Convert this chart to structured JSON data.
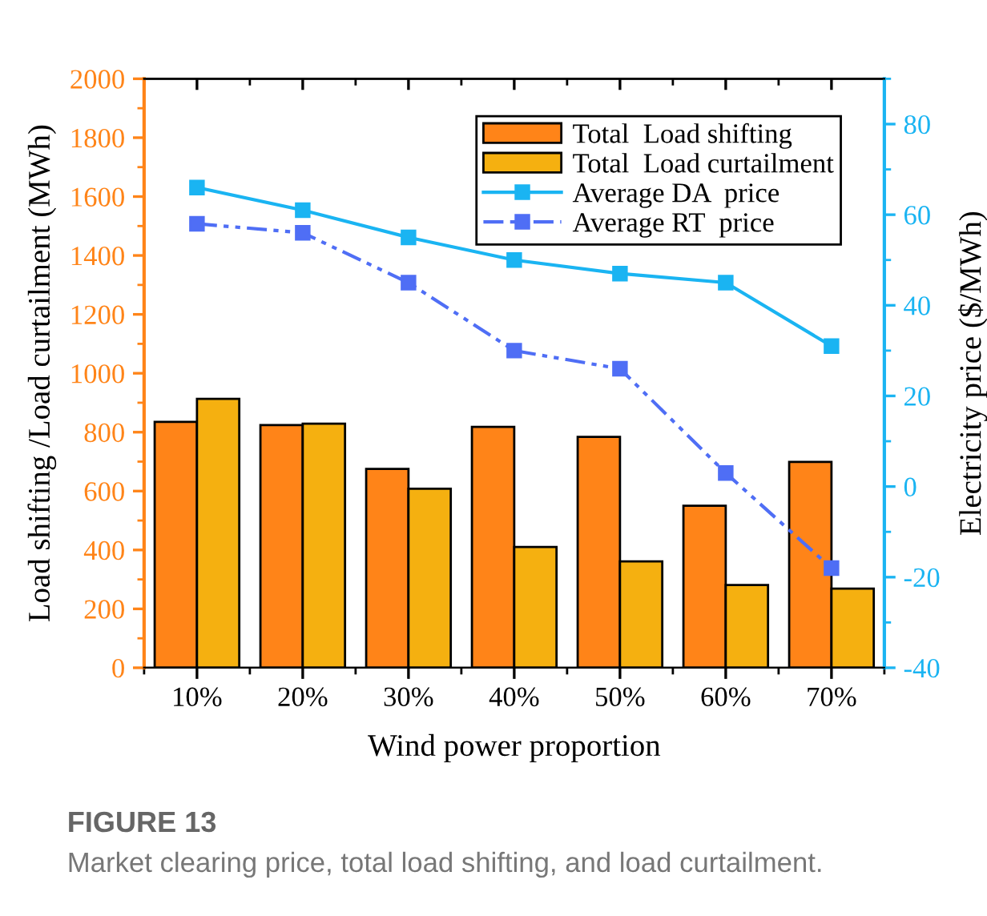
{
  "chart_data": {
    "type": "bar",
    "xlabel": "Wind power proportion",
    "ylabel": "Load shifting /Load curtailment (MWh)",
    "y2label": "Electricity price ($/MWh)",
    "categories": [
      "10%",
      "20%",
      "30%",
      "40%",
      "50%",
      "60%",
      "70%"
    ],
    "series": [
      {
        "name": "Total  Load shifting",
        "color": "#ff8418",
        "values": [
          835,
          824,
          675,
          818,
          784,
          550,
          699
        ]
      },
      {
        "name": "Total  Load curtailment",
        "color": "#f5b010",
        "values": [
          913,
          829,
          608,
          410,
          361,
          281,
          269
        ]
      },
      {
        "name": "Average DA  price",
        "type": "line",
        "axis": "y2",
        "color": "#1ab4f2",
        "line_style": "solid",
        "values": [
          66,
          61,
          55,
          50,
          47,
          45,
          31
        ]
      },
      {
        "name": "Average RT  price",
        "type": "line",
        "axis": "y2",
        "color": "#4f6ef5",
        "line_style": "dashed",
        "values": [
          58,
          56,
          45,
          30,
          26,
          3,
          -18
        ]
      }
    ],
    "marker": "square",
    "ylim": [
      0,
      2000
    ],
    "yticks": [
      0,
      200,
      400,
      600,
      800,
      1000,
      1200,
      1400,
      1600,
      1800,
      2000
    ],
    "y2lim": [
      -40,
      90
    ],
    "y2ticks": [
      -40,
      -20,
      0,
      20,
      40,
      60,
      80
    ],
    "legend": "top right",
    "grid": false,
    "annotations": [
      "FIGURE 13",
      "Market clearing price, total load shifting, and load curtailment."
    ]
  }
}
